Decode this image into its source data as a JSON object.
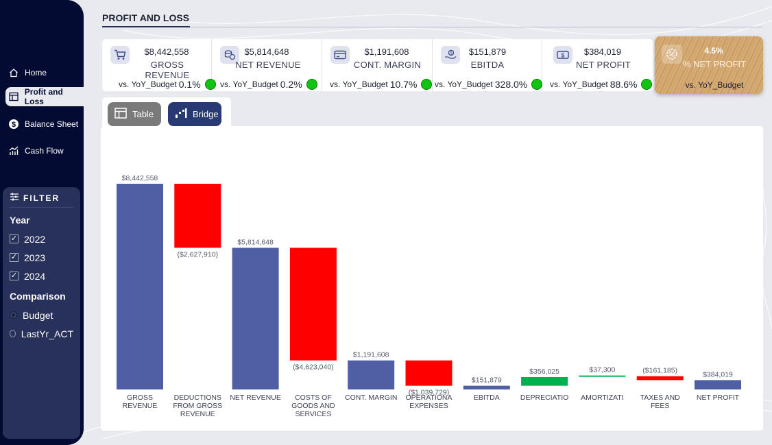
{
  "page": {
    "title": "PROFIT AND LOSS"
  },
  "nav": {
    "items": [
      {
        "label": "Home",
        "icon": "home-icon",
        "active": false
      },
      {
        "label": "Profit and Loss",
        "icon": "table-icon",
        "active": true
      },
      {
        "label": "Balance Sheet",
        "icon": "dollar-icon",
        "active": false
      },
      {
        "label": "Cash Flow",
        "icon": "bar-chart-icon",
        "active": false
      }
    ]
  },
  "filter": {
    "title": "FILTER",
    "year_heading": "Year",
    "years": [
      {
        "label": "2022",
        "checked": true
      },
      {
        "label": "2023",
        "checked": true
      },
      {
        "label": "2024",
        "checked": true
      }
    ],
    "comparison_heading": "Comparison",
    "comparison_options": [
      {
        "label": "Budget",
        "selected": true
      },
      {
        "label": "LastYr_ACT",
        "selected": false
      }
    ]
  },
  "kpis": [
    {
      "value": "$8,442,558",
      "label": "GROSS REVENUE",
      "cmp_text": "vs. YoY_Budget",
      "cmp_pct": "0.1%",
      "icon": "cart-icon",
      "status": "good"
    },
    {
      "value": "$5,814,648",
      "label": "NET REVENUE",
      "cmp_text": "vs. YoY_Budget",
      "cmp_pct": "0.2%",
      "icon": "coins-icon",
      "status": "good"
    },
    {
      "value": "$1,191,608",
      "label": "CONT. MARGIN",
      "cmp_text": "vs. YoY_Budget",
      "cmp_pct": "10.7%",
      "icon": "card-icon",
      "status": "good"
    },
    {
      "value": "$151,879",
      "label": "EBITDA",
      "cmp_text": "vs. YoY_Budget",
      "cmp_pct": "328.0%",
      "icon": "hand-coin-icon",
      "status": "good"
    },
    {
      "value": "$384,019",
      "label": "NET PROFIT",
      "cmp_text": "vs. YoY_Budget",
      "cmp_pct": "88.6%",
      "icon": "banknote-icon",
      "status": "good"
    }
  ],
  "kpi_highlight": {
    "value": "4.5%",
    "label": "% NET PROFIT",
    "cmp_text": "vs. YoY_Budget",
    "icon": "percent-badge-icon"
  },
  "view_toggle": {
    "table_label": "Table",
    "bridge_label": "Bridge",
    "active": "Bridge"
  },
  "colors": {
    "total": "#4f5fa3",
    "negative": "#ff0000",
    "positive": "#00b050",
    "sidebar": "#040b33",
    "status_good": "#12c412"
  },
  "chart_data": {
    "type": "bar",
    "subtype": "waterfall",
    "title": "",
    "ylim": [
      0,
      8442558
    ],
    "steps": [
      {
        "label": "GROSS REVENUE",
        "value": 8442558,
        "kind": "total",
        "data_label": "$8,442,558"
      },
      {
        "label": "DEDUCTIONS FROM GROSS REVENUE",
        "value": -2627910,
        "kind": "delta",
        "data_label": "($2,627,910)"
      },
      {
        "label": "NET REVENUE",
        "value": 5814648,
        "kind": "total",
        "data_label": "$5,814,648"
      },
      {
        "label": "COSTS OF GOODS AND SERVICES",
        "value": -4623040,
        "kind": "delta",
        "data_label": "($4,623,040)"
      },
      {
        "label": "CONT. MARGIN",
        "value": 1191608,
        "kind": "total",
        "data_label": "$1,191,608"
      },
      {
        "label": "OPERATIONA EXPENSES",
        "value": -1039729,
        "kind": "delta",
        "data_label": "($1,039,729)"
      },
      {
        "label": "EBITDA",
        "value": 151879,
        "kind": "total",
        "data_label": "$151,879"
      },
      {
        "label": "DEPRECIATIO",
        "value": 356025,
        "kind": "delta",
        "data_label": "$356,025"
      },
      {
        "label": "AMORTIZATI",
        "value": 37300,
        "kind": "delta",
        "data_label": "$37,300"
      },
      {
        "label": "TAXES AND FEES",
        "value": -161185,
        "kind": "delta",
        "data_label": "($161,185)"
      },
      {
        "label": "NET PROFIT",
        "value": 384019,
        "kind": "total",
        "data_label": "$384,019"
      }
    ]
  }
}
